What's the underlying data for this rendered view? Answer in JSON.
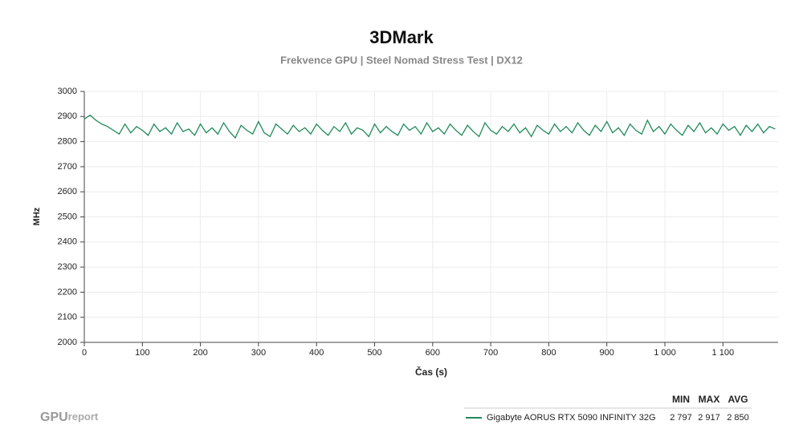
{
  "chart_data": {
    "type": "line",
    "title": "3DMark",
    "subtitle": "Frekvence GPU | Steel Nomad Stress Test | DX12",
    "y_label": "MHz",
    "x_label": "Čas (s)",
    "xlim": [
      0,
      1195
    ],
    "ylim": [
      2000,
      3000
    ],
    "xticks": [
      0,
      100,
      200,
      300,
      400,
      500,
      600,
      700,
      800,
      900,
      {
        "value": 1000,
        "label": "1 000"
      },
      {
        "value": 1100,
        "label": "1 100"
      }
    ],
    "yticks": [
      2000,
      2100,
      2200,
      2300,
      2400,
      2500,
      2600,
      2700,
      2800,
      2900,
      3000
    ],
    "grid": true,
    "x": [
      0,
      10,
      20,
      30,
      40,
      50,
      60,
      70,
      80,
      90,
      100,
      110,
      120,
      130,
      140,
      150,
      160,
      170,
      180,
      190,
      200,
      210,
      220,
      230,
      240,
      250,
      260,
      270,
      280,
      290,
      300,
      310,
      320,
      330,
      340,
      350,
      360,
      370,
      380,
      390,
      400,
      410,
      420,
      430,
      440,
      450,
      460,
      470,
      480,
      490,
      500,
      510,
      520,
      530,
      540,
      550,
      560,
      570,
      580,
      590,
      600,
      610,
      620,
      630,
      640,
      650,
      660,
      670,
      680,
      690,
      700,
      710,
      720,
      730,
      740,
      750,
      760,
      770,
      780,
      790,
      800,
      810,
      820,
      830,
      840,
      850,
      860,
      870,
      880,
      890,
      900,
      910,
      920,
      930,
      940,
      950,
      960,
      970,
      980,
      990,
      1000,
      1010,
      1020,
      1030,
      1040,
      1050,
      1060,
      1070,
      1080,
      1090,
      1100,
      1110,
      1120,
      1130,
      1140,
      1150,
      1160,
      1170,
      1180,
      1190
    ],
    "series": [
      {
        "name": "Gigabyte AORUS RTX 5090 INFINITY 32G",
        "color": "#1f8a5a",
        "values": [
          2890,
          2905,
          2885,
          2870,
          2860,
          2845,
          2830,
          2870,
          2835,
          2860,
          2845,
          2825,
          2870,
          2840,
          2855,
          2830,
          2875,
          2840,
          2850,
          2825,
          2870,
          2835,
          2855,
          2830,
          2875,
          2840,
          2815,
          2865,
          2845,
          2830,
          2880,
          2835,
          2820,
          2870,
          2850,
          2830,
          2865,
          2840,
          2855,
          2830,
          2870,
          2845,
          2825,
          2860,
          2840,
          2875,
          2830,
          2855,
          2845,
          2820,
          2870,
          2835,
          2860,
          2840,
          2825,
          2870,
          2845,
          2860,
          2830,
          2875,
          2840,
          2855,
          2830,
          2870,
          2845,
          2825,
          2865,
          2840,
          2820,
          2875,
          2845,
          2830,
          2860,
          2840,
          2870,
          2835,
          2855,
          2820,
          2865,
          2845,
          2830,
          2870,
          2840,
          2860,
          2835,
          2875,
          2845,
          2825,
          2865,
          2840,
          2880,
          2835,
          2855,
          2825,
          2870,
          2845,
          2830,
          2885,
          2840,
          2860,
          2830,
          2870,
          2845,
          2825,
          2865,
          2840,
          2875,
          2835,
          2855,
          2830,
          2870,
          2845,
          2860,
          2825,
          2865,
          2840,
          2870,
          2835,
          2860,
          2850
        ],
        "stats": [
          "2 797",
          "2 917",
          "2 850"
        ]
      }
    ],
    "stats_headers": [
      "MIN",
      "MAX",
      "AVG"
    ]
  },
  "logo": {
    "bold": "GPU",
    "light": "report"
  }
}
